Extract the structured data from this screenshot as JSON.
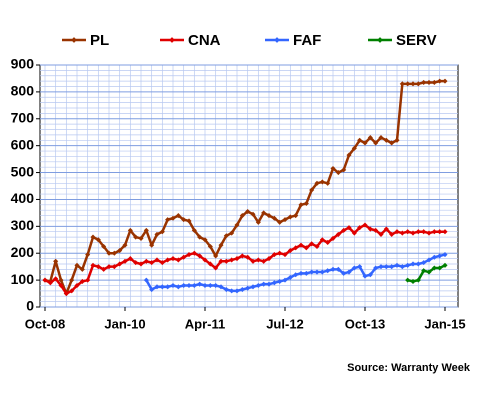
{
  "chart_data": {
    "type": "line",
    "source": "Source: Warranty Week",
    "categories": [
      "Oct-08",
      null,
      null,
      null,
      null,
      null,
      null,
      null,
      null,
      null,
      null,
      null,
      null,
      null,
      null,
      "Jan-10",
      null,
      null,
      null,
      null,
      null,
      null,
      null,
      null,
      null,
      null,
      null,
      null,
      null,
      null,
      "Apr-11",
      null,
      null,
      null,
      null,
      null,
      null,
      null,
      null,
      null,
      null,
      null,
      null,
      null,
      null,
      "Jul-12",
      null,
      null,
      null,
      null,
      null,
      null,
      null,
      null,
      null,
      null,
      null,
      null,
      null,
      null,
      "Oct-13",
      null,
      null,
      null,
      null,
      null,
      null,
      null,
      null,
      null,
      null,
      null,
      null,
      null,
      null,
      "Jan-15"
    ],
    "series": [
      {
        "name": "PL",
        "color": "#993300",
        "values": [
          100,
          95,
          170,
          100,
          50,
          100,
          155,
          140,
          195,
          260,
          250,
          225,
          200,
          200,
          210,
          230,
          285,
          260,
          255,
          285,
          230,
          270,
          280,
          325,
          330,
          340,
          325,
          320,
          285,
          260,
          250,
          225,
          190,
          230,
          265,
          275,
          305,
          340,
          355,
          345,
          315,
          350,
          340,
          330,
          315,
          325,
          335,
          340,
          380,
          385,
          435,
          460,
          465,
          460,
          515,
          500,
          510,
          565,
          590,
          620,
          610,
          630,
          610,
          630,
          620,
          610,
          620,
          830,
          830,
          830,
          830,
          835,
          835,
          835,
          840,
          840
        ]
      },
      {
        "name": "CNA",
        "color": "#e00000",
        "values": [
          100,
          90,
          105,
          80,
          50,
          60,
          80,
          95,
          100,
          155,
          150,
          140,
          150,
          150,
          160,
          170,
          180,
          165,
          160,
          170,
          165,
          175,
          165,
          175,
          180,
          175,
          185,
          195,
          200,
          190,
          175,
          160,
          145,
          170,
          170,
          175,
          180,
          190,
          185,
          170,
          175,
          170,
          180,
          195,
          200,
          195,
          210,
          220,
          230,
          220,
          235,
          225,
          250,
          240,
          255,
          270,
          285,
          295,
          275,
          295,
          305,
          290,
          285,
          270,
          290,
          270,
          280,
          275,
          280,
          275,
          280,
          280,
          275,
          280,
          280,
          280
        ]
      },
      {
        "name": "FAF",
        "color": "#3366ff",
        "values": [
          null,
          null,
          null,
          null,
          null,
          null,
          null,
          null,
          null,
          null,
          null,
          null,
          null,
          null,
          null,
          null,
          null,
          null,
          null,
          100,
          65,
          75,
          75,
          75,
          80,
          75,
          80,
          80,
          80,
          85,
          80,
          80,
          80,
          75,
          65,
          60,
          60,
          65,
          70,
          75,
          80,
          85,
          85,
          90,
          95,
          100,
          110,
          120,
          125,
          125,
          130,
          130,
          130,
          135,
          140,
          140,
          125,
          130,
          145,
          150,
          115,
          120,
          145,
          150,
          150,
          150,
          155,
          150,
          155,
          160,
          160,
          165,
          175,
          185,
          190,
          195
        ]
      },
      {
        "name": "SERV",
        "color": "#008000",
        "values": [
          null,
          null,
          null,
          null,
          null,
          null,
          null,
          null,
          null,
          null,
          null,
          null,
          null,
          null,
          null,
          null,
          null,
          null,
          null,
          null,
          null,
          null,
          null,
          null,
          null,
          null,
          null,
          null,
          null,
          null,
          null,
          null,
          null,
          null,
          null,
          null,
          null,
          null,
          null,
          null,
          null,
          null,
          null,
          null,
          null,
          null,
          null,
          null,
          null,
          null,
          null,
          null,
          null,
          null,
          null,
          null,
          null,
          null,
          null,
          null,
          null,
          null,
          null,
          null,
          null,
          null,
          null,
          null,
          100,
          95,
          100,
          135,
          130,
          145,
          145,
          155
        ]
      }
    ],
    "ylim": [
      0,
      900
    ],
    "yticks": [
      0,
      100,
      200,
      300,
      400,
      500,
      600,
      700,
      800,
      900
    ],
    "grid": true,
    "legend": "top"
  }
}
